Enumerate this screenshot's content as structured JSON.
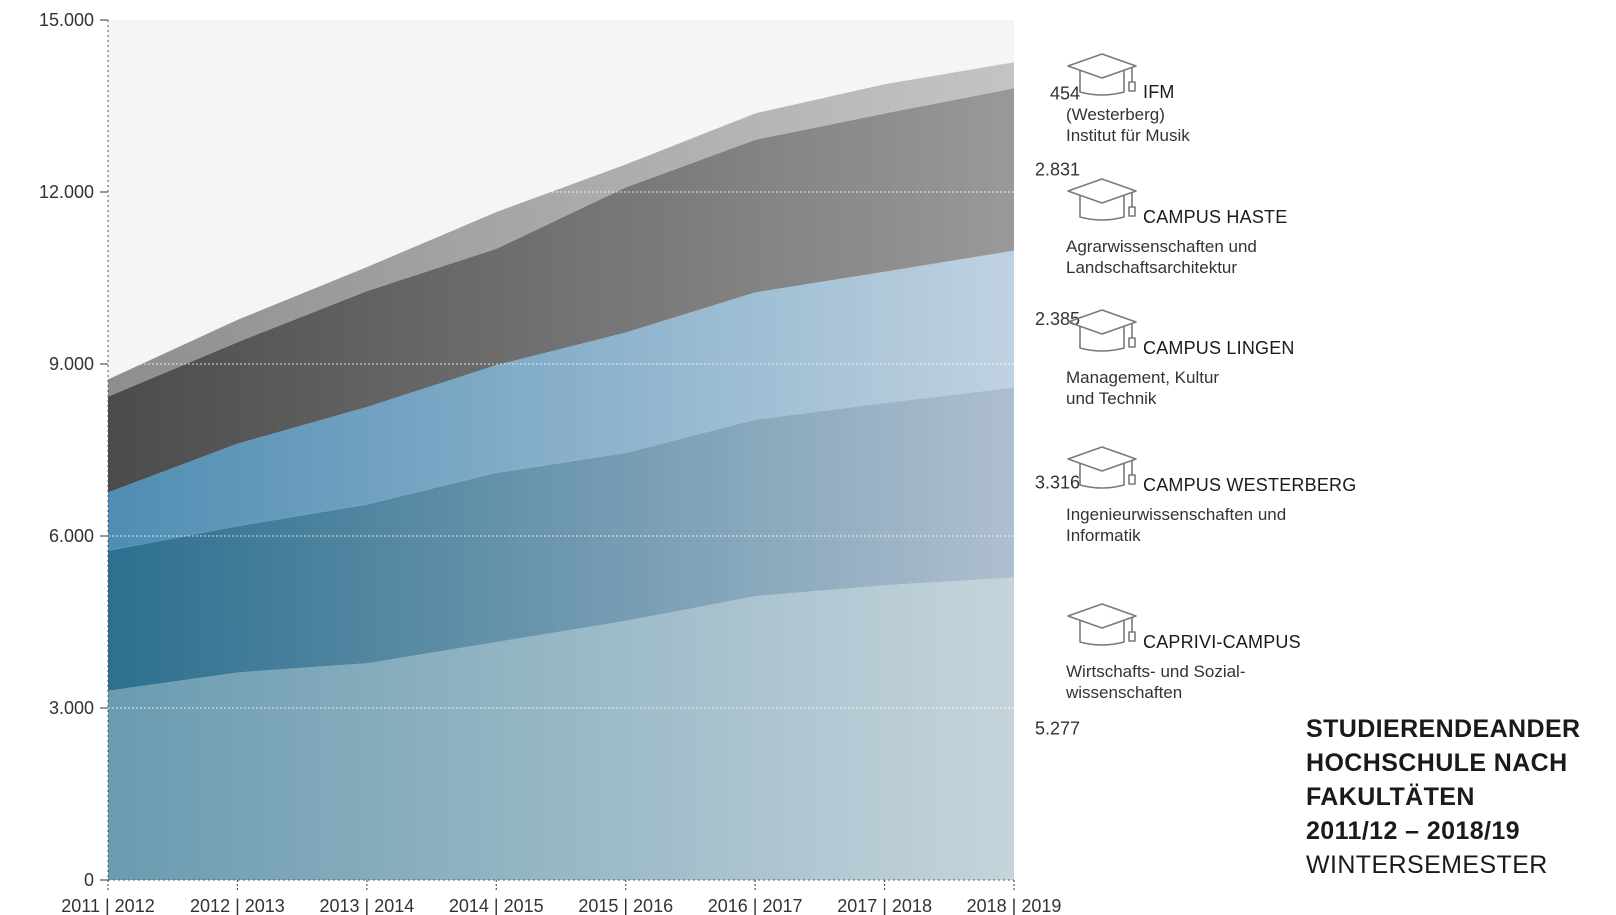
{
  "chart_data": {
    "type": "area",
    "stacked": true,
    "categories": [
      "2011 | 2012",
      "2012 | 2013",
      "2013 | 2014",
      "2014 | 2015",
      "2015 | 2016",
      "2016 | 2017",
      "2017 | 2018",
      "2018 | 2019"
    ],
    "ylim": [
      0,
      15000
    ],
    "yticks": [
      0,
      3000,
      6000,
      9000,
      12000,
      15000
    ],
    "ytick_labels": [
      "0",
      "3.000",
      "6.000",
      "9.000",
      "12.000",
      "15.000"
    ],
    "grid": true,
    "legend_position": "right",
    "series": [
      {
        "name": "CAPRIVI-CAMPUS",
        "values": [
          3300,
          3620,
          3780,
          4150,
          4520,
          4950,
          5140,
          5277
        ],
        "color_start": "#6a9bb0",
        "color_end": "#c5d4db"
      },
      {
        "name": "CAMPUS WESTERBERG",
        "values": [
          2440,
          2550,
          2770,
          2950,
          2930,
          3080,
          3180,
          3316
        ],
        "color_start": "#2c6f8e",
        "color_end": "#aebfcf"
      },
      {
        "name": "CAMPUS LINGEN",
        "values": [
          1020,
          1440,
          1700,
          1880,
          2100,
          2220,
          2290,
          2385
        ],
        "color_start": "#4f8db3",
        "color_end": "#c0d2e1"
      },
      {
        "name": "CAMPUS HASTE",
        "values": [
          1670,
          1770,
          2020,
          2030,
          2530,
          2660,
          2760,
          2831
        ],
        "color_start": "#4b4b4b",
        "color_end": "#999999"
      },
      {
        "name": "IFM",
        "values": [
          300,
          390,
          420,
          640,
          400,
          460,
          510,
          454
        ],
        "color_start": "#8e8e8e",
        "color_end": "#c4c4c4"
      }
    ],
    "end_labels": [
      "454",
      "2.831",
      "2.385",
      "3.316",
      "5.277"
    ],
    "plot_background": "#f5f5f5",
    "grid_color": "#ffffff"
  },
  "legend": [
    {
      "name": "IFM",
      "desc": "(Westerberg)\nInstitut für Musik",
      "value": "454"
    },
    {
      "name": "CAMPUS HASTE",
      "desc": "Agrarwissenschaften und\nLandschaftsarchitektur",
      "value": "2.831"
    },
    {
      "name": "CAMPUS LINGEN",
      "desc": "Management, Kultur\nund Technik",
      "value": "2.385"
    },
    {
      "name": "CAMPUS WESTERBERG",
      "desc": "Ingenieurwissenschaften und\nInformatik",
      "value": "3.316"
    },
    {
      "name": "CAPRIVI-CAMPUS",
      "desc": "Wirtschafts- und Sozial-\nwissenschaften",
      "value": "5.277"
    }
  ],
  "title": {
    "line1": "STUDIERENDEANDER",
    "line2": "HOCHSCHULE NACH",
    "line3": "FAKULTÄTEN",
    "line4": "2011/12 – 2018/19",
    "line5": "WINTERSEMESTER"
  },
  "icons": {
    "legend_icon": "graduation-cap-icon"
  }
}
